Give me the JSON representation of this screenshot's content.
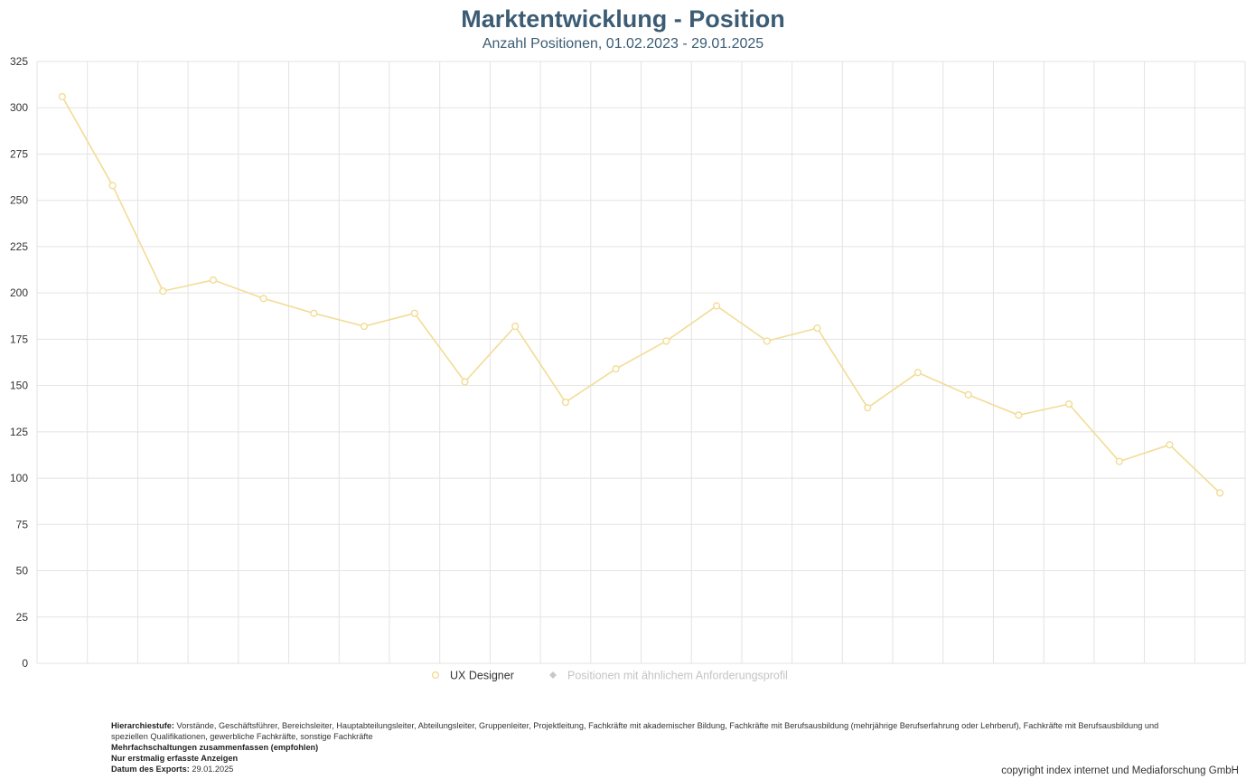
{
  "chart_data": {
    "type": "line",
    "title": "Marktentwicklung - Position",
    "subtitle": "Anzahl Positionen, 01.02.2023 - 29.01.2025",
    "xlabel": "",
    "ylabel": "",
    "ylim": [
      0,
      325
    ],
    "yticks": [
      0,
      25,
      50,
      75,
      100,
      125,
      150,
      175,
      200,
      225,
      250,
      275,
      300,
      325
    ],
    "grid": true,
    "legend_position": "bottom",
    "series": [
      {
        "name": "UX Designer",
        "color": "#f2dc96",
        "values": [
          306,
          258,
          201,
          207,
          197,
          189,
          182,
          189,
          152,
          182,
          141,
          159,
          174,
          193,
          174,
          181,
          138,
          157,
          145,
          134,
          140,
          109,
          118,
          92
        ]
      },
      {
        "name": "Positionen mit ähnlichem Anforderungsprofil",
        "color": "#c8c8c8",
        "values": []
      }
    ]
  },
  "footer": {
    "hierarchy_label": "Hierarchiestufe:",
    "hierarchy_text": " Vorstände, Geschäftsführer, Bereichsleiter, Hauptabteilungsleiter, Abteilungsleiter, Gruppenleiter, Projektleitung, Fachkräfte mit akademischer Bildung, Fachkräfte mit Berufsausbildung (mehrjährige Berufserfahrung oder Lehrberuf), Fachkräfte mit Berufsausbildung und speziellen Qualifikationen, gewerbliche Fachkräfte, sonstige Fachkräfte",
    "line2": "Mehrfachschaltungen zusammenfassen (empfohlen)",
    "line3": "Nur erstmalig erfasste Anzeigen",
    "export_label": "Datum des Exports:",
    "export_date": " 29.01.2025"
  },
  "copyright": "copyright index internet und Mediaforschung GmbH"
}
